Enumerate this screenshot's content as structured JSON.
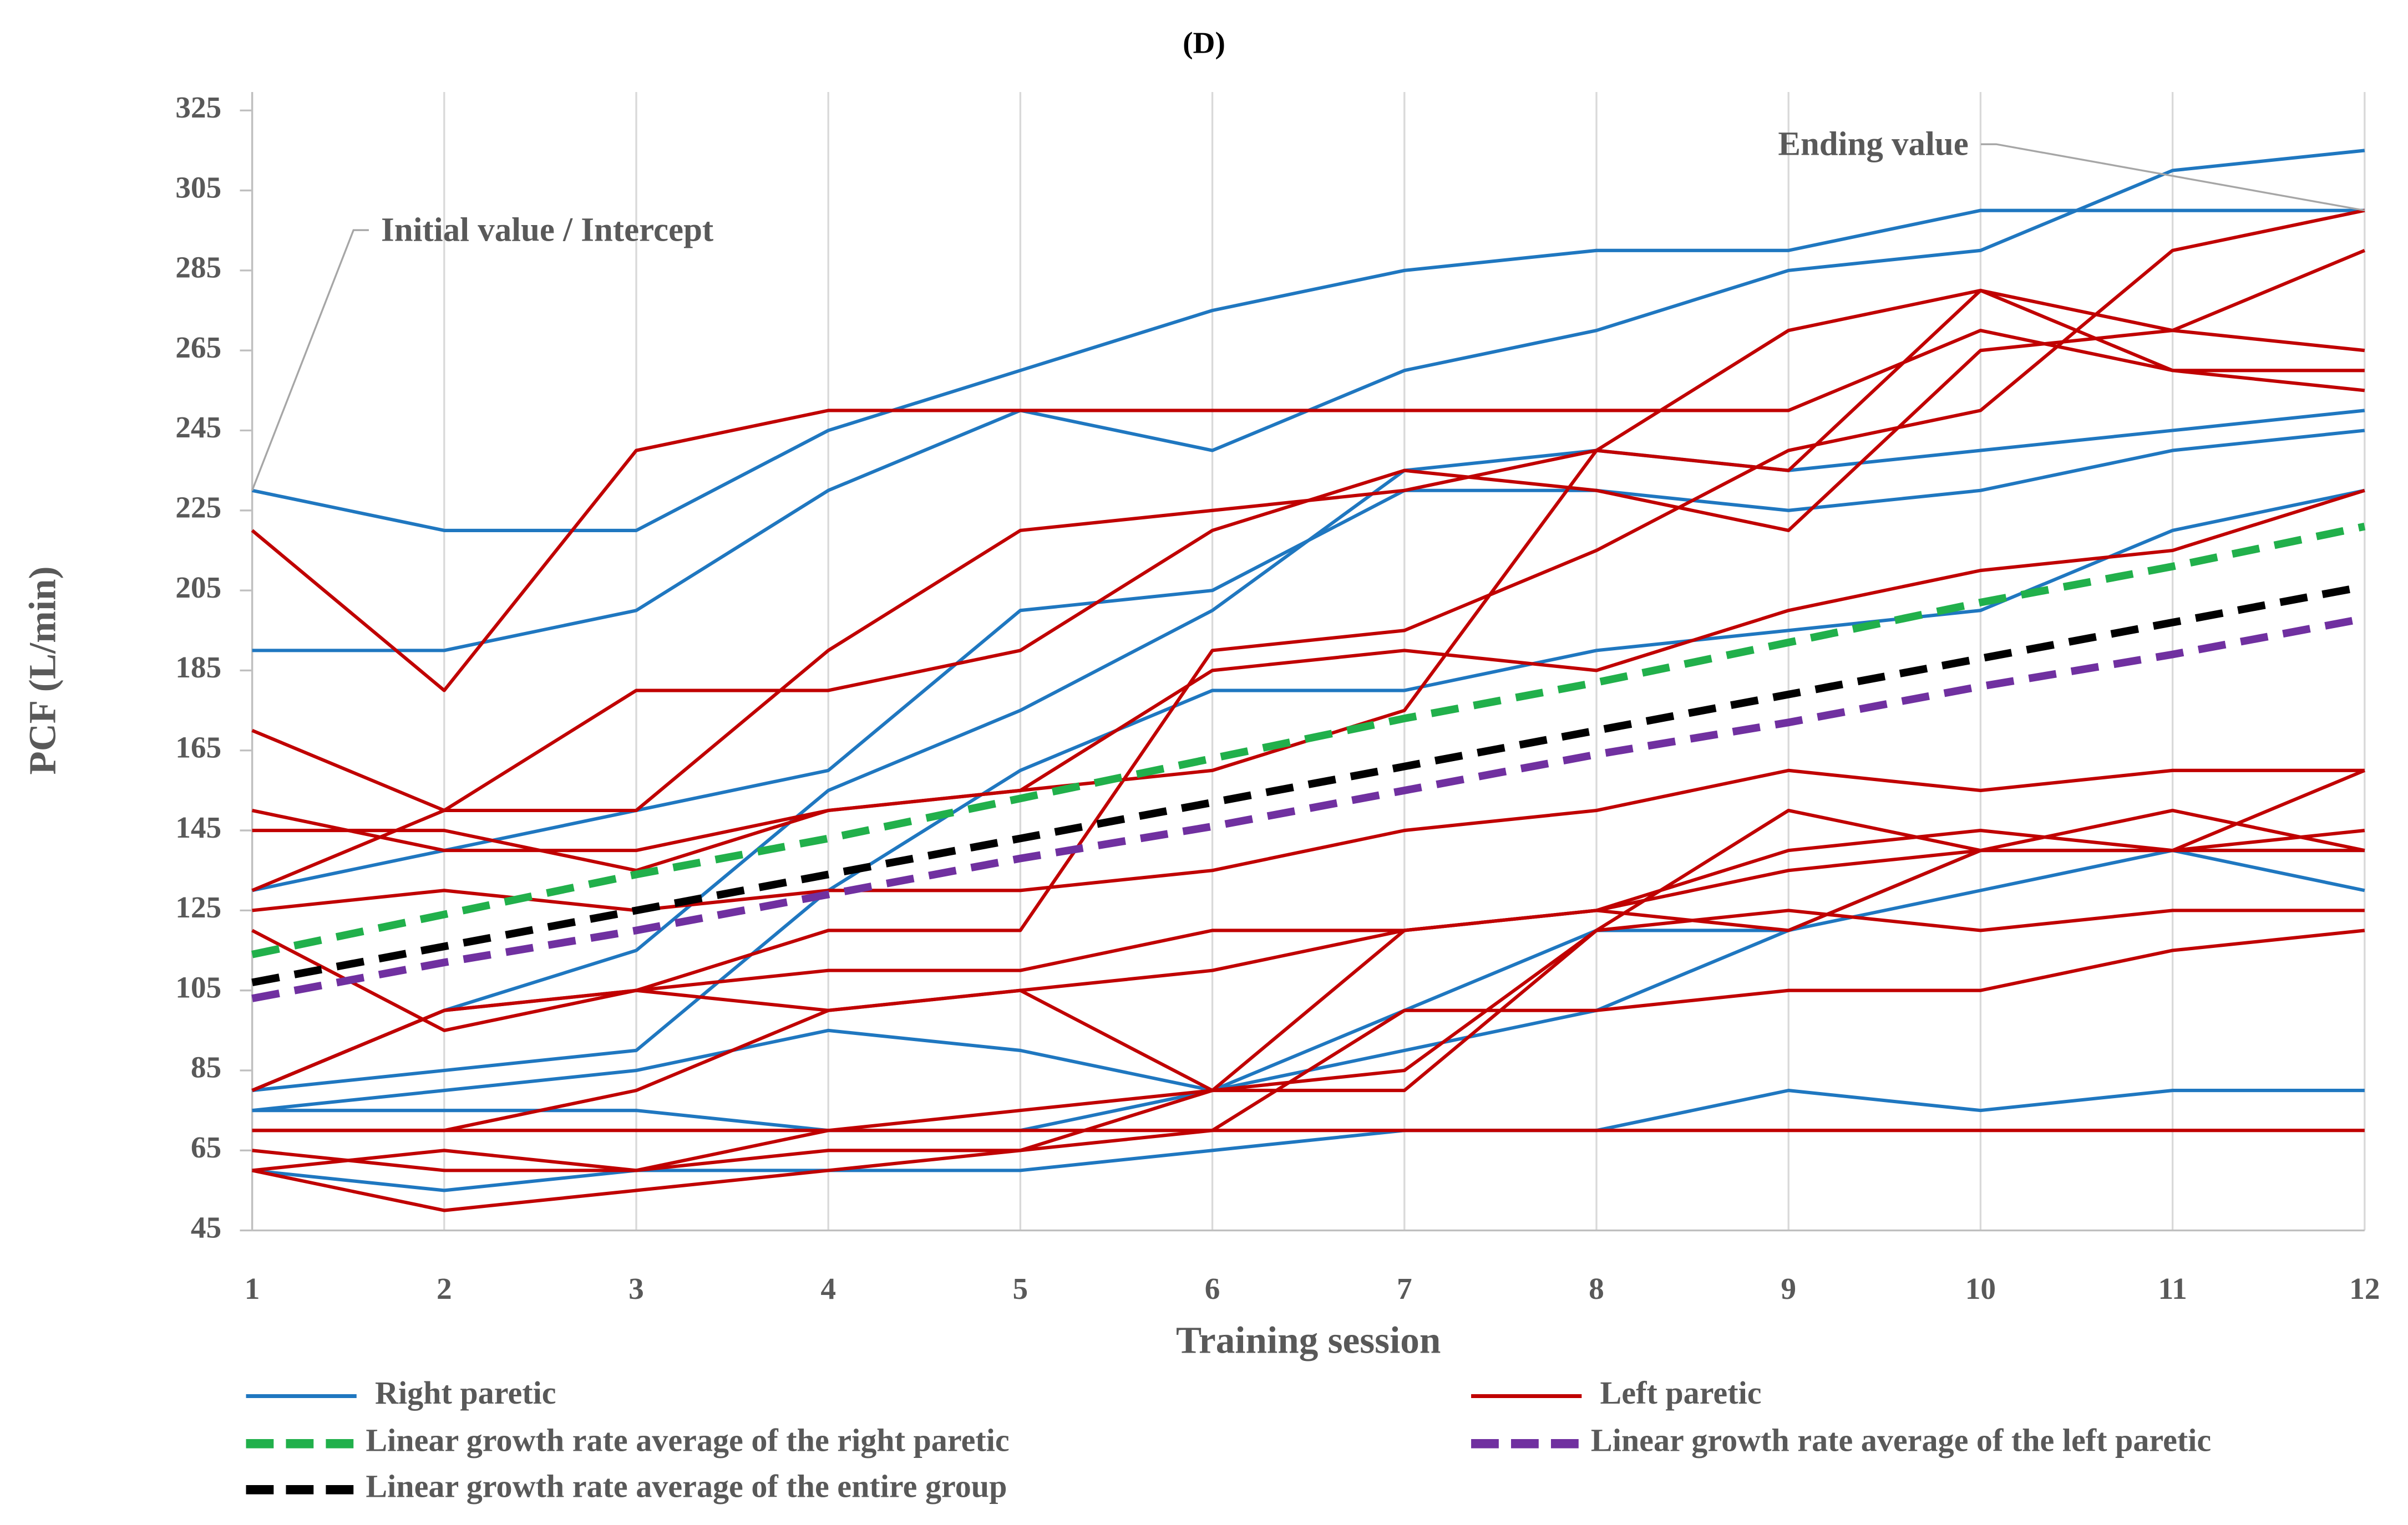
{
  "chart_data": {
    "type": "line",
    "panel_label": "(D)",
    "x_label": "Training session",
    "y_label": "PCF (L/min)",
    "x": [
      1,
      2,
      3,
      4,
      5,
      6,
      7,
      8,
      9,
      10,
      11,
      12
    ],
    "xlim": [
      1,
      12
    ],
    "xticks": [
      1,
      2,
      3,
      4,
      5,
      6,
      7,
      8,
      9,
      10,
      11,
      12
    ],
    "ylim": [
      45,
      325
    ],
    "yticks": [
      45,
      65,
      85,
      105,
      125,
      145,
      165,
      185,
      205,
      225,
      245,
      265,
      285,
      305,
      325
    ],
    "grid": "x",
    "groups": [
      {
        "name": "Right paretic",
        "color": "#1f77c0",
        "lines": [
          [
            230,
            220,
            220,
            245,
            260,
            275,
            285,
            290,
            290,
            300,
            300,
            300
          ],
          [
            190,
            190,
            200,
            230,
            250,
            240,
            260,
            270,
            285,
            290,
            310,
            315
          ],
          [
            130,
            140,
            150,
            160,
            200,
            205,
            230,
            230,
            225,
            230,
            240,
            245
          ],
          [
            80,
            100,
            115,
            155,
            175,
            200,
            235,
            240,
            235,
            240,
            245,
            250
          ],
          [
            80,
            85,
            90,
            130,
            160,
            180,
            180,
            190,
            195,
            200,
            220,
            230
          ],
          [
            75,
            80,
            85,
            95,
            90,
            80,
            90,
            100,
            120,
            140,
            140,
            140
          ],
          [
            75,
            75,
            75,
            70,
            70,
            80,
            100,
            120,
            120,
            130,
            140,
            130
          ],
          [
            60,
            55,
            60,
            60,
            60,
            65,
            70,
            70,
            80,
            75,
            80,
            80
          ]
        ]
      },
      {
        "name": "Left paretic",
        "color": "#c00000",
        "lines": [
          [
            220,
            180,
            240,
            250,
            250,
            250,
            250,
            250,
            250,
            270,
            260,
            260
          ],
          [
            170,
            150,
            150,
            190,
            220,
            225,
            230,
            240,
            235,
            280,
            270,
            265
          ],
          [
            130,
            150,
            180,
            180,
            190,
            220,
            235,
            230,
            220,
            265,
            270,
            290
          ],
          [
            150,
            140,
            140,
            150,
            155,
            160,
            175,
            240,
            270,
            280,
            260,
            255
          ],
          [
            145,
            145,
            135,
            150,
            155,
            185,
            190,
            185,
            200,
            210,
            215,
            230
          ],
          [
            125,
            130,
            125,
            130,
            130,
            135,
            145,
            150,
            160,
            155,
            160,
            160
          ],
          [
            120,
            95,
            105,
            110,
            110,
            120,
            120,
            125,
            135,
            140,
            140,
            160
          ],
          [
            80,
            100,
            105,
            120,
            120,
            190,
            195,
            215,
            240,
            250,
            290,
            300
          ],
          [
            80,
            100,
            105,
            100,
            105,
            110,
            120,
            125,
            140,
            145,
            140,
            145
          ],
          [
            70,
            70,
            80,
            100,
            105,
            80,
            80,
            120,
            150,
            140,
            150,
            140
          ],
          [
            65,
            60,
            60,
            70,
            75,
            80,
            85,
            120,
            125,
            120,
            125,
            125
          ],
          [
            60,
            65,
            60,
            65,
            65,
            70,
            100,
            100,
            105,
            105,
            115,
            120
          ],
          [
            60,
            50,
            55,
            60,
            65,
            80,
            120,
            125,
            120,
            140,
            140,
            140
          ],
          [
            70,
            70,
            70,
            70,
            70,
            70,
            70,
            70,
            70,
            70,
            70,
            70
          ]
        ]
      }
    ],
    "series": [
      {
        "name": "Linear growth rate average of the right paretic",
        "color": "#21b04b",
        "dashed": true,
        "values": [
          114,
          124,
          134,
          143,
          153,
          163,
          173,
          182,
          192,
          202,
          211,
          221
        ]
      },
      {
        "name": "Linear growth rate average of the left paretic",
        "color": "#7030a0",
        "dashed": true,
        "values": [
          103,
          112,
          120,
          129,
          138,
          146,
          155,
          164,
          172,
          181,
          189,
          198
        ]
      },
      {
        "name": "Linear growth rate average of the entire group",
        "color": "#000000",
        "dashed": true,
        "values": [
          107,
          116,
          125,
          134,
          143,
          152,
          161,
          170,
          179,
          188,
          197,
          206
        ]
      }
    ],
    "annotations": [
      {
        "text": "Initial value / Intercept",
        "x": 1,
        "y": 230
      },
      {
        "text": "Ending value",
        "x": 12,
        "y": 300
      }
    ]
  }
}
